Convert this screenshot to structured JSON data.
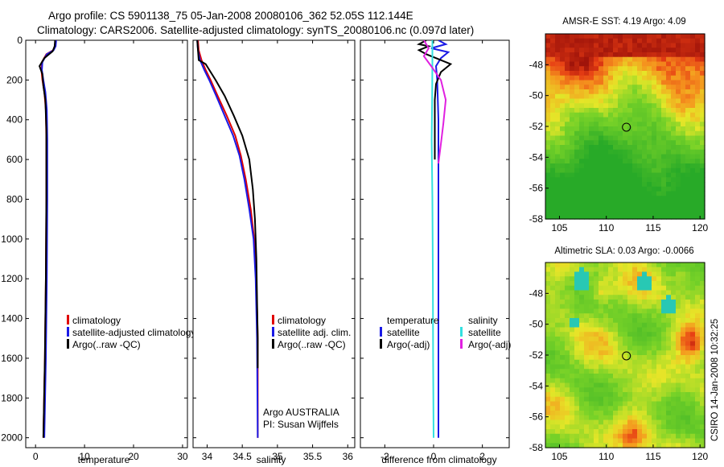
{
  "title": {
    "line1": "Argo profile: CS 5901138_75 05-Jan-2008 20080106_362 52.05S 112.144E",
    "line2": "Climatology: CARS2006. Satellite-adjusted climatology: synTS_20080106.nc (0.097d later)"
  },
  "colors": {
    "clim": "#e00000",
    "sat": "#1a1ae6",
    "argo": "#000000",
    "sat_s": "#33e0e0",
    "argo_s": "#e020e0"
  },
  "chart_data": [
    {
      "id": "temperature",
      "type": "line",
      "xlabel": "temperature",
      "xlim": [
        -2,
        31
      ],
      "xticks": [
        0,
        10,
        20,
        30
      ],
      "ylim": [
        0,
        2050
      ],
      "yticks": [
        0,
        200,
        400,
        600,
        800,
        1000,
        1200,
        1400,
        1600,
        1800,
        2000
      ],
      "y_inverted": true,
      "legend": [
        "climatology",
        "satellite-adjusted climatology",
        "Argo(..raw -QC)"
      ],
      "series": [
        {
          "name": "climatology",
          "color": "clim",
          "points": [
            [
              4.1,
              0
            ],
            [
              4.0,
              30
            ],
            [
              3.6,
              50
            ],
            [
              2.2,
              70
            ],
            [
              1.3,
              110
            ],
            [
              1.2,
              150
            ],
            [
              1.4,
              200
            ],
            [
              1.8,
              260
            ],
            [
              2.1,
              350
            ],
            [
              2.2,
              500
            ],
            [
              2.2,
              800
            ],
            [
              2.1,
              1200
            ],
            [
              1.9,
              1600
            ],
            [
              1.6,
              2000
            ]
          ]
        },
        {
          "name": "satellite-adjusted climatology",
          "color": "sat",
          "points": [
            [
              4.2,
              0
            ],
            [
              4.1,
              30
            ],
            [
              3.7,
              50
            ],
            [
              2.3,
              70
            ],
            [
              1.4,
              110
            ],
            [
              1.3,
              150
            ],
            [
              1.6,
              200
            ],
            [
              2.0,
              260
            ],
            [
              2.3,
              350
            ],
            [
              2.4,
              500
            ],
            [
              2.4,
              800
            ],
            [
              2.3,
              1200
            ],
            [
              2.1,
              1600
            ],
            [
              1.8,
              2000
            ]
          ]
        },
        {
          "name": "Argo(..raw -QC)",
          "color": "argo",
          "points": [
            [
              4.0,
              0
            ],
            [
              3.9,
              30
            ],
            [
              3.5,
              55
            ],
            [
              1.8,
              90
            ],
            [
              0.8,
              130
            ],
            [
              1.4,
              170
            ],
            [
              1.6,
              230
            ],
            [
              2.0,
              300
            ],
            [
              2.2,
              450
            ],
            [
              2.2,
              800
            ],
            [
              2.1,
              1200
            ],
            [
              1.9,
              1600
            ],
            [
              1.6,
              2000
            ]
          ]
        }
      ]
    },
    {
      "id": "salinity",
      "type": "line",
      "xlabel": "salinity",
      "xlim": [
        33.8,
        36.1
      ],
      "xticks": [
        34,
        34.5,
        35,
        35.5,
        36
      ],
      "ylim": [
        0,
        2050
      ],
      "yticks": [
        0,
        200,
        400,
        600,
        800,
        1000,
        1200,
        1400,
        1600,
        1800,
        2000
      ],
      "y_inverted": true,
      "legend": [
        "climatology",
        "satellite adj. clim.",
        "Argo(..raw -QC)"
      ],
      "annotation": [
        "Argo AUSTRALIA",
        "PI: Susan Wijffels"
      ],
      "series": [
        {
          "name": "climatology",
          "color": "clim",
          "points": [
            [
              33.87,
              0
            ],
            [
              33.88,
              50
            ],
            [
              33.92,
              100
            ],
            [
              33.98,
              150
            ],
            [
              34.05,
              200
            ],
            [
              34.15,
              280
            ],
            [
              34.28,
              380
            ],
            [
              34.4,
              480
            ],
            [
              34.48,
              580
            ],
            [
              34.55,
              700
            ],
            [
              34.62,
              850
            ],
            [
              34.67,
              1000
            ],
            [
              34.7,
              1200
            ],
            [
              34.72,
              1500
            ],
            [
              34.72,
              2000
            ]
          ]
        },
        {
          "name": "satellite adj. clim.",
          "color": "sat",
          "points": [
            [
              33.86,
              0
            ],
            [
              33.87,
              50
            ],
            [
              33.9,
              100
            ],
            [
              33.96,
              150
            ],
            [
              34.03,
              200
            ],
            [
              34.13,
              280
            ],
            [
              34.25,
              380
            ],
            [
              34.37,
              480
            ],
            [
              34.46,
              580
            ],
            [
              34.53,
              700
            ],
            [
              34.6,
              850
            ],
            [
              34.66,
              1000
            ],
            [
              34.69,
              1200
            ],
            [
              34.71,
              1500
            ],
            [
              34.72,
              2000
            ]
          ]
        },
        {
          "name": "Argo(..raw -QC)",
          "color": "argo",
          "points": [
            [
              33.86,
              0
            ],
            [
              33.87,
              50
            ],
            [
              33.88,
              100
            ],
            [
              33.98,
              120
            ],
            [
              34.12,
              200
            ],
            [
              34.25,
              280
            ],
            [
              34.38,
              380
            ],
            [
              34.5,
              480
            ],
            [
              34.6,
              600
            ],
            [
              34.65,
              750
            ],
            [
              34.68,
              900
            ],
            [
              34.7,
              1100
            ],
            [
              34.71,
              1300
            ],
            [
              34.72,
              1500
            ],
            [
              34.72,
              1650
            ]
          ]
        }
      ]
    },
    {
      "id": "difference",
      "type": "line",
      "xlabel": "difference from climatology",
      "xlim": [
        -3,
        3.1
      ],
      "xticks": [
        -2,
        0,
        2
      ],
      "ylim": [
        0,
        2050
      ],
      "yticks": [
        0,
        200,
        400,
        600,
        800,
        1000,
        1200,
        1400,
        1600,
        1800,
        2000
      ],
      "y_inverted": true,
      "legend_temperature": {
        "heading": "temperature",
        "items": [
          "satellite",
          "Argo(-adj)"
        ]
      },
      "legend_salinity": {
        "heading": "salinity",
        "items": [
          "satellite",
          "Argo(-adj)"
        ]
      },
      "series": [
        {
          "name": "temperature satellite",
          "color": "sat",
          "points": [
            [
              0.2,
              0
            ],
            [
              0.5,
              20
            ],
            [
              -0.1,
              40
            ],
            [
              0.6,
              60
            ],
            [
              0.3,
              90
            ],
            [
              0.1,
              130
            ],
            [
              0.15,
              200
            ],
            [
              0.2,
              400
            ],
            [
              0.2,
              800
            ],
            [
              0.2,
              1200
            ],
            [
              0.2,
              1600
            ],
            [
              0.2,
              2000
            ]
          ]
        },
        {
          "name": "temperature Argo(-adj)",
          "color": "argo",
          "points": [
            [
              -0.3,
              0
            ],
            [
              -0.6,
              20
            ],
            [
              -0.2,
              30
            ],
            [
              -0.6,
              50
            ],
            [
              -0.3,
              70
            ],
            [
              0.1,
              90
            ],
            [
              0.7,
              120
            ],
            [
              0.3,
              160
            ],
            [
              0.1,
              220
            ],
            [
              0.05,
              300
            ],
            [
              0.05,
              400
            ],
            [
              0.05,
              600
            ]
          ]
        },
        {
          "name": "salinity satellite",
          "color": "sat_s",
          "points": [
            [
              -0.05,
              0
            ],
            [
              -0.05,
              100
            ],
            [
              -0.06,
              300
            ],
            [
              -0.08,
              500
            ],
            [
              -0.05,
              800
            ],
            [
              -0.03,
              1200
            ],
            [
              -0.02,
              1600
            ],
            [
              0.0,
              2000
            ]
          ]
        },
        {
          "name": "salinity Argo(-adj)",
          "color": "argo_s",
          "points": [
            [
              -0.4,
              0
            ],
            [
              -0.2,
              40
            ],
            [
              -0.4,
              80
            ],
            [
              -0.1,
              130
            ],
            [
              0.3,
              200
            ],
            [
              0.5,
              300
            ],
            [
              0.4,
              420
            ],
            [
              0.3,
              520
            ],
            [
              0.2,
              620
            ]
          ]
        }
      ]
    },
    {
      "id": "sst_map",
      "type": "heatmap",
      "title": "AMSR-E SST: 4.19 Argo: 4.09",
      "xlim": [
        103.5,
        120.5
      ],
      "ylim": [
        -58,
        -46
      ],
      "xticks": [
        105,
        110,
        115,
        120
      ],
      "yticks": [
        -48,
        -50,
        -52,
        -54,
        -56,
        -58
      ],
      "marker": [
        112.144,
        -52.05
      ]
    },
    {
      "id": "sla_map",
      "type": "heatmap",
      "title": "Altimetric SLA: 0.03 Argo: -0.0066",
      "xlim": [
        103.5,
        120.5
      ],
      "ylim": [
        -58,
        -46
      ],
      "xticks": [
        105,
        110,
        115,
        120
      ],
      "yticks": [
        -48,
        -50,
        -52,
        -54,
        -56,
        -58
      ],
      "marker": [
        112.144,
        -52.05
      ]
    }
  ],
  "side_label": "CSIRO 14-Jan-2008 10:32:25"
}
